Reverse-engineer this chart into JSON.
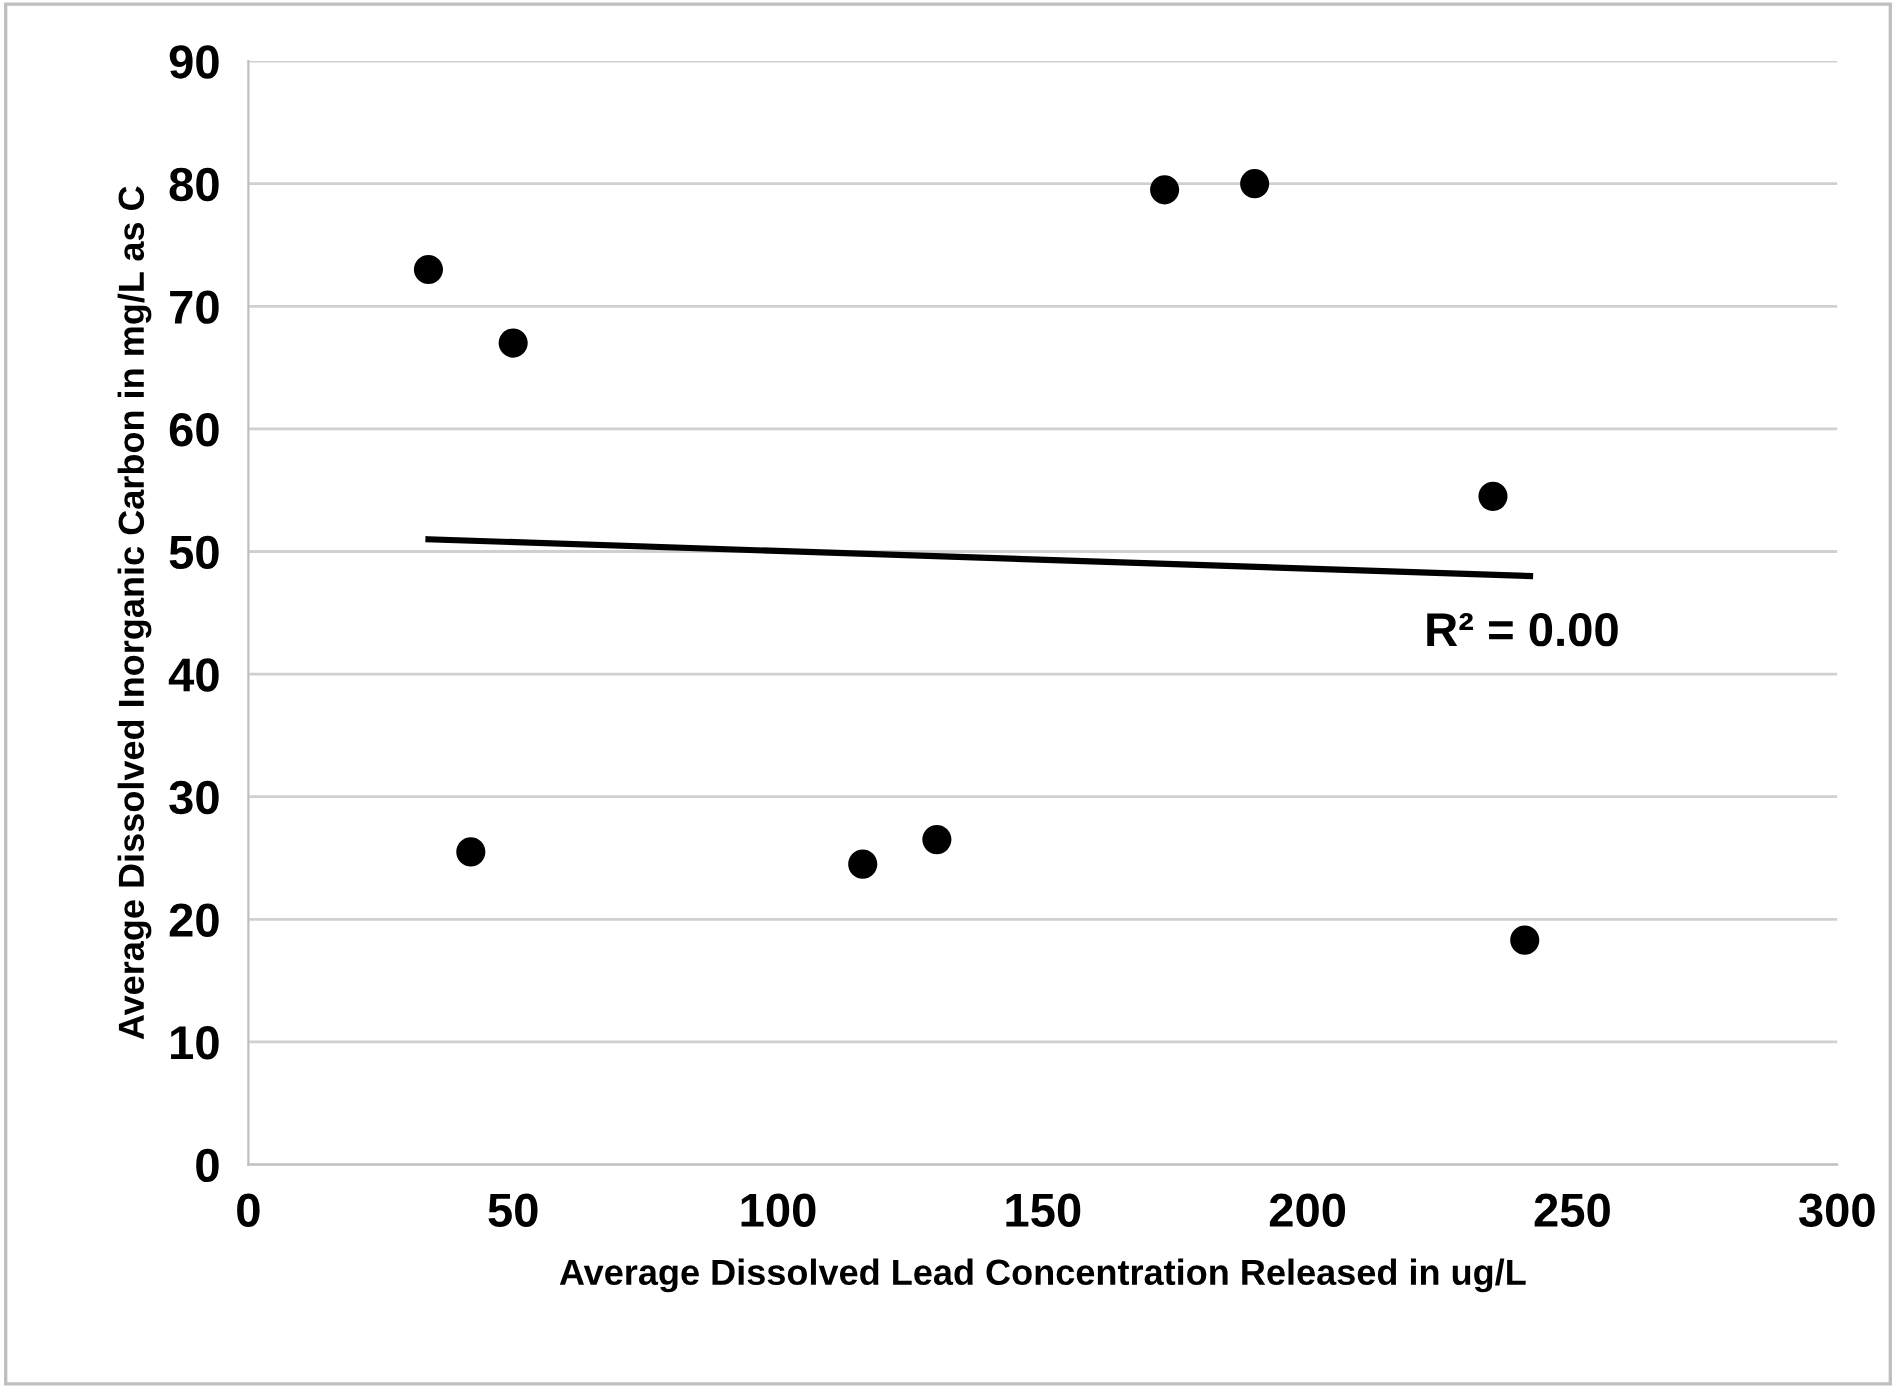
{
  "chart_data": {
    "type": "scatter",
    "xlabel": "Average Dissolved Lead Concentration Released in ug/L",
    "ylabel": "Average Dissolved Inorganic Carbon in mg/L as C",
    "x": [
      34,
      50,
      42,
      116,
      130,
      173,
      190,
      235,
      241
    ],
    "series": [
      {
        "color": "#000000",
        "values": [
          73,
          67,
          25.5,
          24.5,
          26.5,
          79.5,
          80,
          54.5,
          18.3
        ],
        "marker": "circle"
      },
      {
        "type": "line",
        "color": "#000000",
        "x": [
          34,
          242
        ],
        "values": [
          51,
          48
        ],
        "marker": "none",
        "line_style": "solid"
      }
    ],
    "annotations": [
      "R² = 0.00"
    ],
    "xlim": [
      0,
      300
    ],
    "xticks": [
      0,
      50,
      100,
      150,
      200,
      250,
      300
    ],
    "ylim": [
      0,
      90
    ],
    "yticks": [
      0,
      10,
      20,
      30,
      40,
      50,
      60,
      70,
      80,
      90
    ],
    "grid": "y",
    "legend": false
  }
}
